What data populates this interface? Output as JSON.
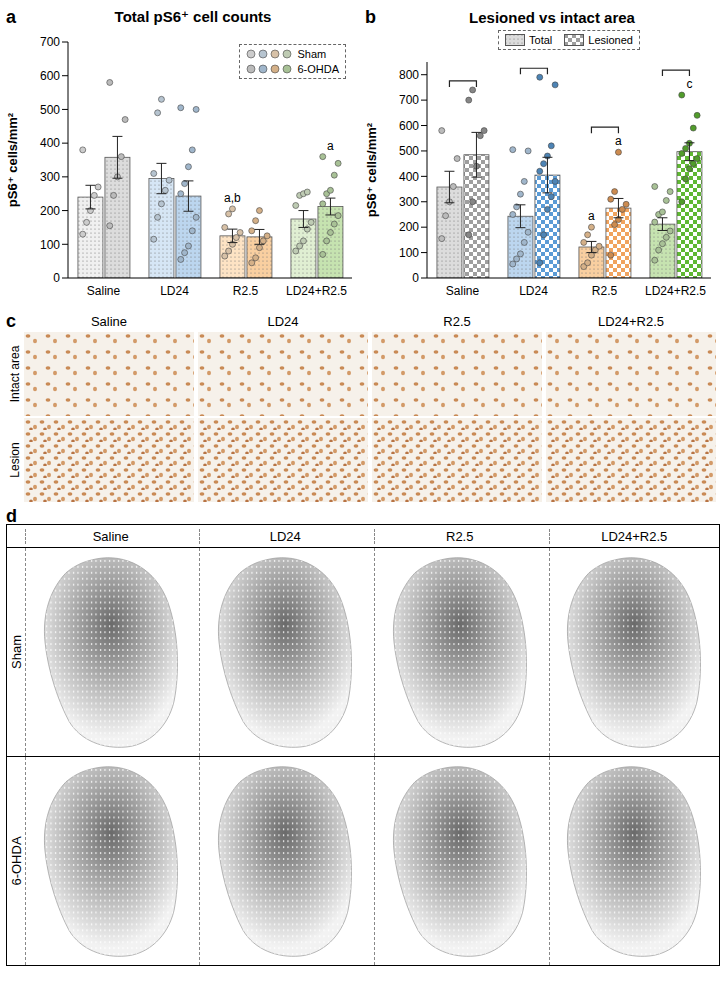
{
  "chart_data": [
    {
      "type": "bar",
      "panel": "a",
      "title": "Total pS6⁺ cell counts",
      "y_label": "pS6⁺ cells/mm²",
      "categories": [
        "Saline",
        "LD24",
        "R2.5",
        "LD24+R2.5"
      ],
      "ylim": [
        0,
        700
      ],
      "yticks": [
        0,
        100,
        200,
        300,
        400,
        500,
        600,
        700
      ],
      "legend": "upper right",
      "series": [
        {
          "name": "Sham",
          "colors": [
            "#f0f0f0",
            "#d6e6f5",
            "#fde3c4",
            "#e0efd2"
          ],
          "values": [
            240,
            295,
            125,
            175
          ],
          "errors": [
            35,
            45,
            20,
            25
          ],
          "points": [
            [
              130,
              165,
              200,
              245,
              270,
              380
            ],
            [
              115,
              180,
              220,
              260,
              290,
              310,
              490,
              530
            ],
            [
              65,
              80,
              100,
              120,
              135,
              150,
              190,
              205
            ],
            [
              80,
              95,
              110,
              145,
              165,
              215,
              245,
              250,
              255
            ]
          ],
          "annotations": [
            null,
            null,
            "a,b",
            null
          ]
        },
        {
          "name": "6-OHDA",
          "colors": [
            "#dcdcdc",
            "#bcd6ef",
            "#f9cfa0",
            "#c6e3b0"
          ],
          "values": [
            358,
            243,
            122,
            212
          ],
          "errors": [
            62,
            45,
            22,
            25
          ],
          "points": [
            [
              155,
              245,
              300,
              360,
              470,
              580
            ],
            [
              55,
              75,
              95,
              140,
              180,
              250,
              280,
              330,
              380,
              500,
              505
            ],
            [
              45,
              60,
              90,
              110,
              125,
              140,
              170,
              200
            ],
            [
              70,
              110,
              135,
              160,
              185,
              220,
              250,
              260,
              305,
              340,
              360
            ]
          ],
          "annotations": [
            null,
            null,
            null,
            "a"
          ]
        }
      ]
    },
    {
      "type": "bar",
      "panel": "b",
      "title": "Lesioned vs intact area",
      "y_label": "pS6⁺ cells/mm²",
      "categories": [
        "Saline",
        "LD24",
        "R2.5",
        "LD24+R2.5"
      ],
      "ylim": [
        0,
        850
      ],
      "yticks": [
        0,
        100,
        200,
        300,
        400,
        500,
        600,
        700,
        800
      ],
      "legend": "top",
      "series": [
        {
          "name": "Total",
          "colors": [
            "#dcdcdc",
            "#bcd6ef",
            "#f9cfa0",
            "#c6e3b0"
          ],
          "values": [
            358,
            243,
            122,
            212
          ],
          "errors": [
            62,
            45,
            22,
            25
          ],
          "points": [
            [
              155,
              245,
              300,
              360,
              470,
              580
            ],
            [
              55,
              75,
              95,
              140,
              180,
              250,
              280,
              330,
              380,
              500,
              505
            ],
            [
              45,
              60,
              90,
              110,
              125,
              140,
              170,
              200
            ],
            [
              70,
              110,
              135,
              160,
              185,
              220,
              250,
              260,
              305,
              340,
              360
            ]
          ],
          "annotations": [
            null,
            null,
            "a",
            null
          ]
        },
        {
          "name": "Lesioned",
          "colors": [
            "#9e9e9e",
            "#5b9bd5",
            "#f0a35e",
            "#5fb832"
          ],
          "values": [
            485,
            405,
            275,
            497
          ],
          "errors": [
            88,
            70,
            38,
            35
          ],
          "points": [
            [
              170,
              300,
              440,
              560,
              580,
              700,
              740
            ],
            [
              60,
              170,
              270,
              320,
              380,
              420,
              450,
              480,
              520,
              760,
              790
            ],
            [
              90,
              210,
              230,
              270,
              290,
              310,
              340,
              495
            ],
            [
              300,
              390,
              430,
              450,
              470,
              490,
              510,
              530,
              590,
              640,
              720
            ]
          ],
          "annotations": [
            null,
            null,
            "a",
            "c"
          ]
        }
      ]
    }
  ],
  "panel_c": {
    "panel": "c",
    "columns": [
      "Saline",
      "LD24",
      "R2.5",
      "LD24+R2.5"
    ],
    "rows": [
      "Intact area",
      "Lesion"
    ]
  },
  "panel_d": {
    "panel": "d",
    "columns": [
      "Saline",
      "LD24",
      "R2.5",
      "LD24+R2.5"
    ],
    "rows": [
      "Sham",
      "6-OHDA"
    ]
  }
}
